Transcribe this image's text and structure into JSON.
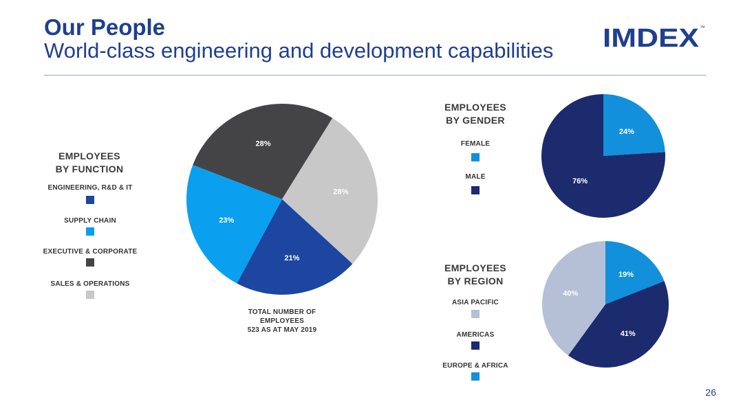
{
  "title": "Our People",
  "subtitle": "World-class engineering and development capabilities",
  "logo": {
    "text": "IMDEX",
    "tm": "™",
    "color": "#1f3f8f"
  },
  "page_number": "26",
  "note": [
    "TOTAL NUMBER OF",
    "EMPLOYEES",
    "523 AS AT MAY 2019"
  ],
  "chart_data": [
    {
      "type": "pie",
      "title": "EMPLOYEES BY FUNCTION",
      "title_lines": [
        "EMPLOYEES",
        "BY FUNCTION"
      ],
      "legend_position": "left",
      "slices": [
        {
          "label": "ENGINEERING, R&D & IT",
          "value": 21,
          "display": "21%",
          "color": "#1c46a0"
        },
        {
          "label": "SUPPLY CHAIN",
          "value": 23,
          "display": "23%",
          "color": "#0b9ff0"
        },
        {
          "label": "EXECUTIVE & CORPORATE",
          "value": 28,
          "display": "28%",
          "color": "#444446"
        },
        {
          "label": "SALES & OPERATIONS",
          "value": 28,
          "display": "28%",
          "color": "#c8c8c8"
        }
      ]
    },
    {
      "type": "pie",
      "title": "EMPLOYEES BY GENDER",
      "title_lines": [
        "EMPLOYEES",
        "BY GENDER"
      ],
      "legend_position": "left",
      "slices": [
        {
          "label": "FEMALE",
          "value": 24,
          "display": "24%",
          "color": "#1290dc"
        },
        {
          "label": "MALE",
          "value": 76,
          "display": "76%",
          "color": "#1c2a6e"
        }
      ]
    },
    {
      "type": "pie",
      "title": "EMPLOYEES BY REGION",
      "title_lines": [
        "EMPLOYEES",
        "BY REGION"
      ],
      "legend_position": "left",
      "slices": [
        {
          "label": "ASIA PACIFIC",
          "value": 40,
          "display": "40%",
          "color": "#b5bfd6"
        },
        {
          "label": "AMERICAS",
          "value": 41,
          "display": "41%",
          "color": "#1c2a6e"
        },
        {
          "label": "EUROPE & AFRICA",
          "value": 19,
          "display": "19%",
          "color": "#1290dc"
        }
      ]
    }
  ]
}
